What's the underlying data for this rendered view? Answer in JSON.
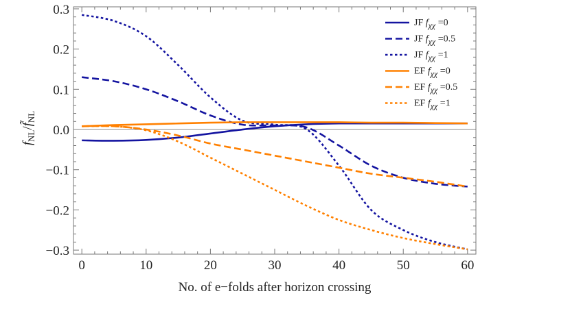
{
  "chart_data": {
    "type": "line",
    "xlabel": "No. of e−folds after horizon crossing",
    "ylabel": {
      "num": "f",
      "num_sub": "NL",
      "sep": "/",
      "den": "f̃",
      "den_sub": "NL"
    },
    "xlim": [
      -1.3,
      61.3
    ],
    "ylim": [
      -0.31,
      0.305
    ],
    "x_ticks": [
      0,
      10,
      20,
      30,
      40,
      50,
      60
    ],
    "y_ticks": [
      -0.3,
      -0.2,
      -0.1,
      0.0,
      0.1,
      0.2,
      0.3
    ],
    "y_tick_labels": [
      "−0.3",
      "−0.2",
      "−0.1",
      "0.0",
      "0.1",
      "0.2",
      "0.3"
    ],
    "grid": false,
    "zero_line": true,
    "legend_position": "top-right",
    "x": [
      0,
      5,
      10,
      15,
      20,
      25,
      30,
      35,
      40,
      45,
      50,
      55,
      60
    ],
    "series": [
      {
        "name": {
          "frame": "JF",
          "var": "f",
          "sub": "χχ",
          "eq": "=0"
        },
        "color": "#1414a0",
        "dash": "solid",
        "values": [
          -0.027,
          -0.028,
          -0.026,
          -0.02,
          -0.01,
          0.0,
          0.008,
          0.013,
          0.015,
          0.015,
          0.015,
          0.015,
          0.015
        ]
      },
      {
        "name": {
          "frame": "JF",
          "var": "f",
          "sub": "χχ",
          "eq": "=0.5"
        },
        "color": "#1414a0",
        "dash": "dashed",
        "values": [
          0.13,
          0.12,
          0.1,
          0.07,
          0.035,
          0.012,
          0.01,
          0.005,
          -0.04,
          -0.09,
          -0.12,
          -0.135,
          -0.142
        ]
      },
      {
        "name": {
          "frame": "JF",
          "var": "f",
          "sub": "χχ",
          "eq": "=1"
        },
        "color": "#1414a0",
        "dash": "dotted",
        "values": [
          0.285,
          0.27,
          0.232,
          0.16,
          0.08,
          0.022,
          0.012,
          0.0,
          -0.09,
          -0.2,
          -0.25,
          -0.28,
          -0.298
        ]
      },
      {
        "name": {
          "frame": "EF",
          "var": "f",
          "sub": "χχ",
          "eq": "=0"
        },
        "color": "#ff8000",
        "dash": "solid",
        "values": [
          0.008,
          0.011,
          0.013,
          0.015,
          0.017,
          0.018,
          0.018,
          0.018,
          0.018,
          0.017,
          0.017,
          0.016,
          0.015
        ]
      },
      {
        "name": {
          "frame": "EF",
          "var": "f",
          "sub": "χχ",
          "eq": "=0.5"
        },
        "color": "#ff8000",
        "dash": "dashed",
        "values": [
          0.008,
          0.008,
          0.0,
          -0.015,
          -0.035,
          -0.05,
          -0.065,
          -0.08,
          -0.095,
          -0.11,
          -0.12,
          -0.13,
          -0.142
        ]
      },
      {
        "name": {
          "frame": "EF",
          "var": "f",
          "sub": "χχ",
          "eq": "=1"
        },
        "color": "#ff8000",
        "dash": "dotted",
        "values": [
          0.008,
          0.008,
          -0.002,
          -0.03,
          -0.07,
          -0.11,
          -0.15,
          -0.19,
          -0.225,
          -0.25,
          -0.27,
          -0.285,
          -0.298
        ]
      }
    ]
  }
}
